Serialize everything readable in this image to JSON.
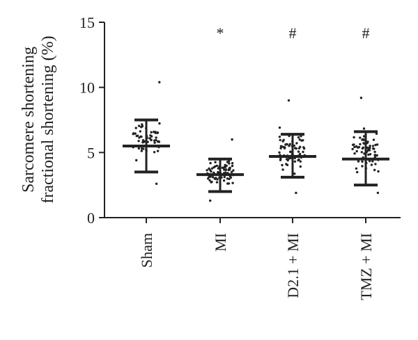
{
  "chart_data": {
    "type": "scatter",
    "title": "",
    "ylabel_lines": [
      "Sarcomere shortening",
      "fractional shortening (%)"
    ],
    "ylim": [
      0,
      15
    ],
    "yticks": [
      0,
      5,
      10,
      15
    ],
    "categories": [
      "Sham",
      "MI",
      "D2.1 + MI",
      "TMZ + MI"
    ],
    "means": [
      5.5,
      3.3,
      4.7,
      4.5
    ],
    "sd_upper": [
      7.5,
      4.5,
      6.4,
      6.6
    ],
    "sd_lower": [
      3.5,
      2.0,
      3.1,
      2.5
    ],
    "point_range": [
      [
        2.6,
        10.4
      ],
      [
        1.3,
        6.0
      ],
      [
        1.9,
        9.0
      ],
      [
        1.9,
        9.2
      ]
    ],
    "point_count": [
      60,
      80,
      70,
      70
    ],
    "significance": [
      "",
      "*",
      "#",
      "#"
    ]
  }
}
